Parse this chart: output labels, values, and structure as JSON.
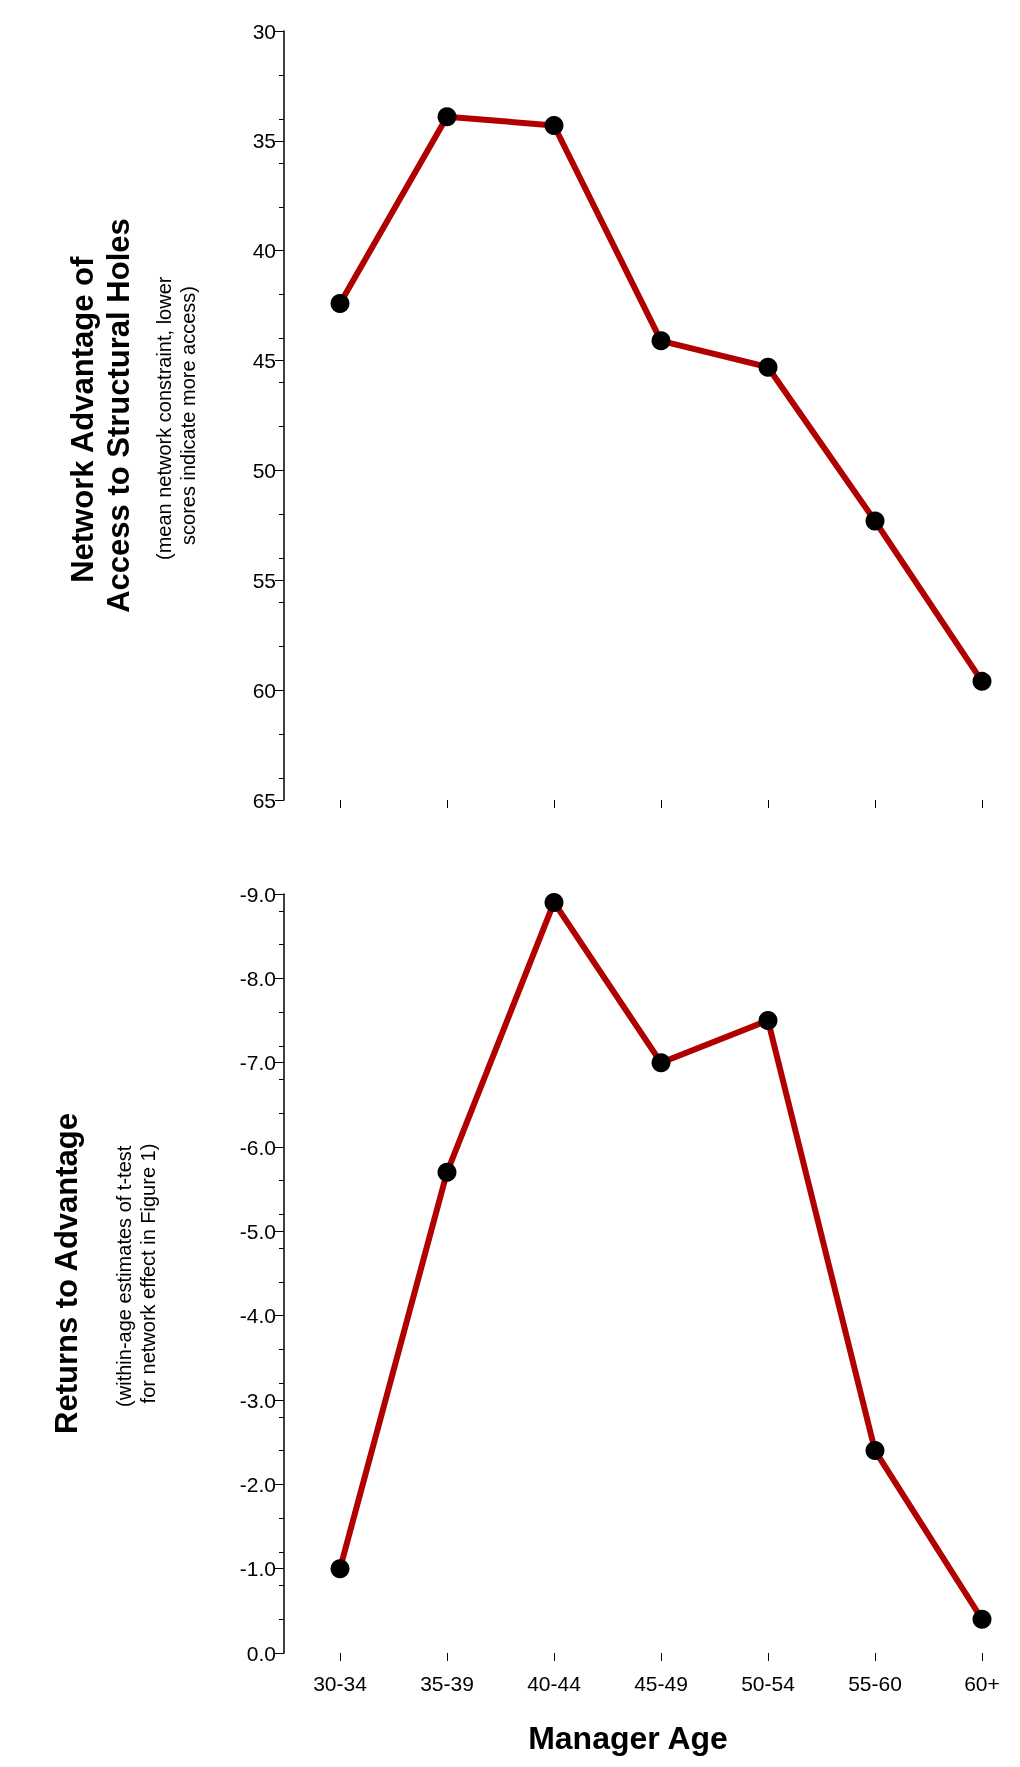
{
  "chart_data": [
    {
      "type": "line",
      "ylabel": "Network Advantage of Access to Structural Holes",
      "subtitle": "(mean network constraint, lower scores indicate more access)",
      "categories": [
        null,
        null,
        null,
        null,
        null,
        null,
        null
      ],
      "series": [
        {
          "color": "#b00000",
          "values": [
            42.4,
            33.9,
            34.3,
            44.1,
            45.3,
            52.3,
            59.6
          ]
        }
      ],
      "ylim": [
        65,
        30
      ],
      "yticks": [
        30,
        35,
        40,
        45,
        50,
        55,
        60,
        65
      ],
      "tick_labels": "y",
      "grid": false,
      "marker": "circle",
      "line_style": "solid"
    },
    {
      "type": "line",
      "ylabel": "Returns to Advantage",
      "subtitle": "(within-age estimates of t-test for network effect in Figure 1)",
      "xlabel": "Manager Age",
      "categories": [
        "30-34",
        "35-39",
        "40-44",
        "45-49",
        "50-54",
        "55-60",
        "60+"
      ],
      "series": [
        {
          "color": "#b00000",
          "values": [
            -1.0,
            -5.7,
            -8.9,
            -7.0,
            -7.5,
            -2.4,
            -0.4
          ]
        }
      ],
      "ylim": [
        0,
        -9
      ],
      "yticks": [
        {
          "value": -9,
          "label": "-9.0"
        },
        {
          "value": -8,
          "label": "-8.0"
        },
        {
          "value": -7,
          "label": "-7.0"
        },
        {
          "value": -6,
          "label": "-6.0"
        },
        {
          "value": -5,
          "label": "-5.0"
        },
        {
          "value": -4,
          "label": "-4.0"
        },
        {
          "value": -3,
          "label": "-3.0"
        },
        {
          "value": -2,
          "label": "-2.0"
        },
        {
          "value": -1,
          "label": "-1.0"
        },
        {
          "value": 0,
          "label": "0.0"
        }
      ],
      "grid": false,
      "marker": "circle",
      "line_style": "solid"
    }
  ]
}
